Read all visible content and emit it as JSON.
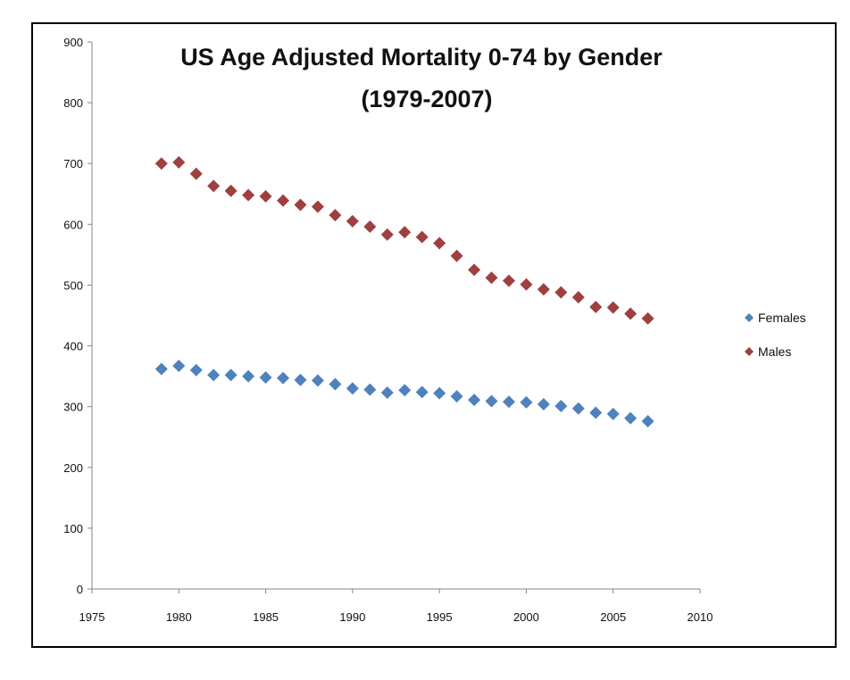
{
  "chart_data": {
    "type": "scatter",
    "title": "US Age Adjusted Mortality 0-74 by Gender",
    "title_line2": "(1979-2007)",
    "xlabel": "",
    "ylabel": "",
    "xlim": [
      1975,
      2010
    ],
    "ylim": [
      0,
      900
    ],
    "x_ticks": [
      1975,
      1980,
      1985,
      1990,
      1995,
      2000,
      2005,
      2010
    ],
    "y_ticks": [
      0,
      100,
      200,
      300,
      400,
      500,
      600,
      700,
      800,
      900
    ],
    "grid": false,
    "legend_position": "right",
    "x": [
      1979,
      1980,
      1981,
      1982,
      1983,
      1984,
      1985,
      1986,
      1987,
      1988,
      1989,
      1990,
      1991,
      1992,
      1993,
      1994,
      1995,
      1996,
      1997,
      1998,
      1999,
      2000,
      2001,
      2002,
      2003,
      2004,
      2005,
      2006,
      2007
    ],
    "series": [
      {
        "name": "Females",
        "color": "#4F81BD",
        "values": [
          362,
          367,
          360,
          352,
          352,
          350,
          348,
          347,
          344,
          343,
          337,
          330,
          328,
          323,
          327,
          324,
          322,
          317,
          311,
          309,
          308,
          307,
          304,
          301,
          297,
          290,
          288,
          281,
          276
        ]
      },
      {
        "name": "Males",
        "color": "#9E403F",
        "values": [
          700,
          702,
          683,
          663,
          655,
          648,
          646,
          639,
          632,
          629,
          615,
          605,
          596,
          583,
          587,
          579,
          569,
          548,
          525,
          512,
          507,
          501,
          493,
          488,
          480,
          464,
          463,
          453,
          445
        ]
      }
    ]
  }
}
